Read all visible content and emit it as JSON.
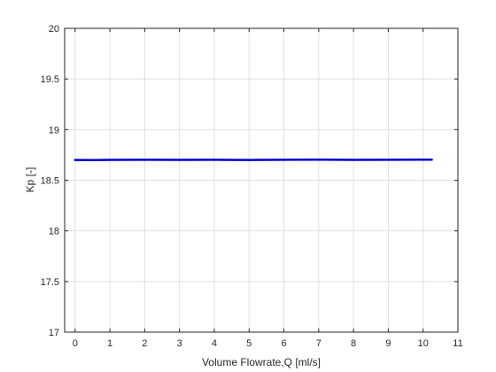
{
  "chart_data": {
    "type": "line",
    "title": "",
    "xlabel": "Volume Flowrate,Q [ml/s]",
    "ylabel": "Kp [-]",
    "xlim": [
      -0.3,
      11
    ],
    "ylim": [
      17,
      20
    ],
    "xticks": [
      0,
      1,
      2,
      3,
      4,
      5,
      6,
      7,
      8,
      9,
      10,
      11
    ],
    "yticks": [
      17,
      17.5,
      18,
      18.5,
      19,
      19.5,
      20
    ],
    "xtick_labels": [
      "0",
      "1",
      "2",
      "3",
      "4",
      "5",
      "6",
      "7",
      "8",
      "9",
      "10",
      "11"
    ],
    "ytick_labels": [
      "17",
      "17.5",
      "18",
      "18.5",
      "19",
      "19.5",
      "20"
    ],
    "grid": true,
    "series": [
      {
        "color": "#0000cc",
        "x": [
          0,
          0.5,
          1,
          2,
          3,
          4,
          5,
          6,
          7,
          8,
          9,
          10,
          10.25
        ],
        "y": [
          18.7,
          18.699,
          18.701,
          18.702,
          18.701,
          18.702,
          18.7,
          18.702,
          18.703,
          18.701,
          18.702,
          18.703,
          18.703
        ]
      }
    ]
  }
}
